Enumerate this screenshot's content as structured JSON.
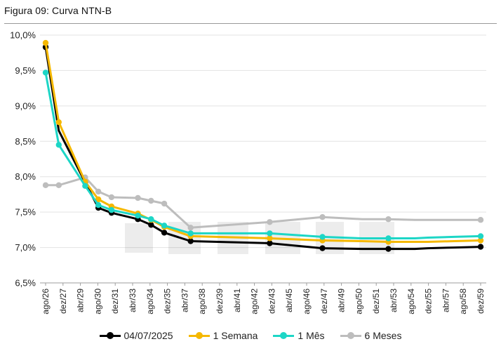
{
  "figure": {
    "title": "Figura 09: Curva NTN-B"
  },
  "chart_data": {
    "type": "line",
    "title": "Figura 09: Curva NTN-B",
    "xlabel": "",
    "ylabel": "",
    "ylim": [
      6.5,
      10.0
    ],
    "y_ticks": [
      6.5,
      7.0,
      7.5,
      8.0,
      8.5,
      9.0,
      9.5,
      10.0
    ],
    "y_tick_labels": [
      "6,5%",
      "7,0%",
      "7,5%",
      "8,0%",
      "8,5%",
      "9,0%",
      "9,5%",
      "10,0%"
    ],
    "x_tick_labels": [
      "ago/26",
      "dez/27",
      "abr/29",
      "ago/30",
      "dez/31",
      "abr/33",
      "ago/34",
      "dez/35",
      "abr/37",
      "ago/38",
      "dez/39",
      "abr/41",
      "ago/42",
      "dez/43",
      "abr/45",
      "ago/46",
      "dez/47",
      "abr/49",
      "ago/50",
      "dez/51",
      "abr/53",
      "ago/54",
      "dez/55",
      "abr/57",
      "ago/58",
      "dez/59"
    ],
    "x_range": [
      0,
      33
    ],
    "series": [
      {
        "name": "04/07/2025",
        "color": "#000000",
        "x": [
          0,
          1,
          3,
          4,
          5,
          7,
          8,
          9,
          11,
          17,
          21,
          24,
          26,
          28,
          29,
          31,
          33
        ],
        "values": [
          9.83,
          8.65,
          7.92,
          7.56,
          7.49,
          7.4,
          7.32,
          7.21,
          7.09,
          7.06,
          6.99,
          6.98,
          6.98,
          6.98,
          6.99,
          7.0,
          7.01
        ]
      },
      {
        "name": "1 Semana",
        "color": "#F5B800",
        "x": [
          0,
          1,
          3,
          4,
          5,
          7,
          8,
          9,
          11,
          17,
          21,
          24,
          26,
          28,
          29,
          31,
          33
        ],
        "values": [
          9.89,
          8.77,
          7.93,
          7.68,
          7.58,
          7.48,
          7.39,
          7.29,
          7.16,
          7.13,
          7.1,
          7.09,
          7.08,
          7.08,
          7.08,
          7.09,
          7.1
        ]
      },
      {
        "name": "1 Mês",
        "color": "#1DD6C6",
        "x": [
          0,
          1,
          3,
          4,
          5,
          7,
          8,
          9,
          11,
          17,
          21,
          24,
          26,
          28,
          29,
          31,
          33
        ],
        "values": [
          9.47,
          8.45,
          7.87,
          7.6,
          7.53,
          7.45,
          7.4,
          7.31,
          7.2,
          7.2,
          7.15,
          7.13,
          7.13,
          7.13,
          7.14,
          7.15,
          7.16
        ]
      },
      {
        "name": "6 Meses",
        "color": "#BDBDBD",
        "x": [
          0,
          1,
          3,
          4,
          5,
          7,
          8,
          9,
          11,
          17,
          21,
          24,
          26,
          28,
          29,
          31,
          33
        ],
        "values": [
          7.88,
          7.88,
          7.99,
          7.79,
          7.71,
          7.7,
          7.66,
          7.62,
          7.28,
          7.36,
          7.43,
          7.4,
          7.4,
          7.39,
          7.39,
          7.39,
          7.39
        ]
      }
    ],
    "markers": {
      "04/07/2025": [
        0,
        3,
        4,
        5,
        7,
        8,
        9,
        11,
        17,
        21,
        26,
        33
      ],
      "1 Semana": [
        0,
        1,
        3,
        4,
        5,
        7,
        8,
        9,
        11,
        17,
        21,
        26,
        33
      ],
      "1 Mês": [
        0,
        1,
        3,
        4,
        5,
        7,
        8,
        9,
        11,
        17,
        21,
        26,
        33
      ],
      "6 Meses": [
        0,
        1,
        3,
        4,
        5,
        7,
        8,
        9,
        11,
        17,
        21,
        26,
        33
      ]
    },
    "legend_position": "bottom"
  }
}
